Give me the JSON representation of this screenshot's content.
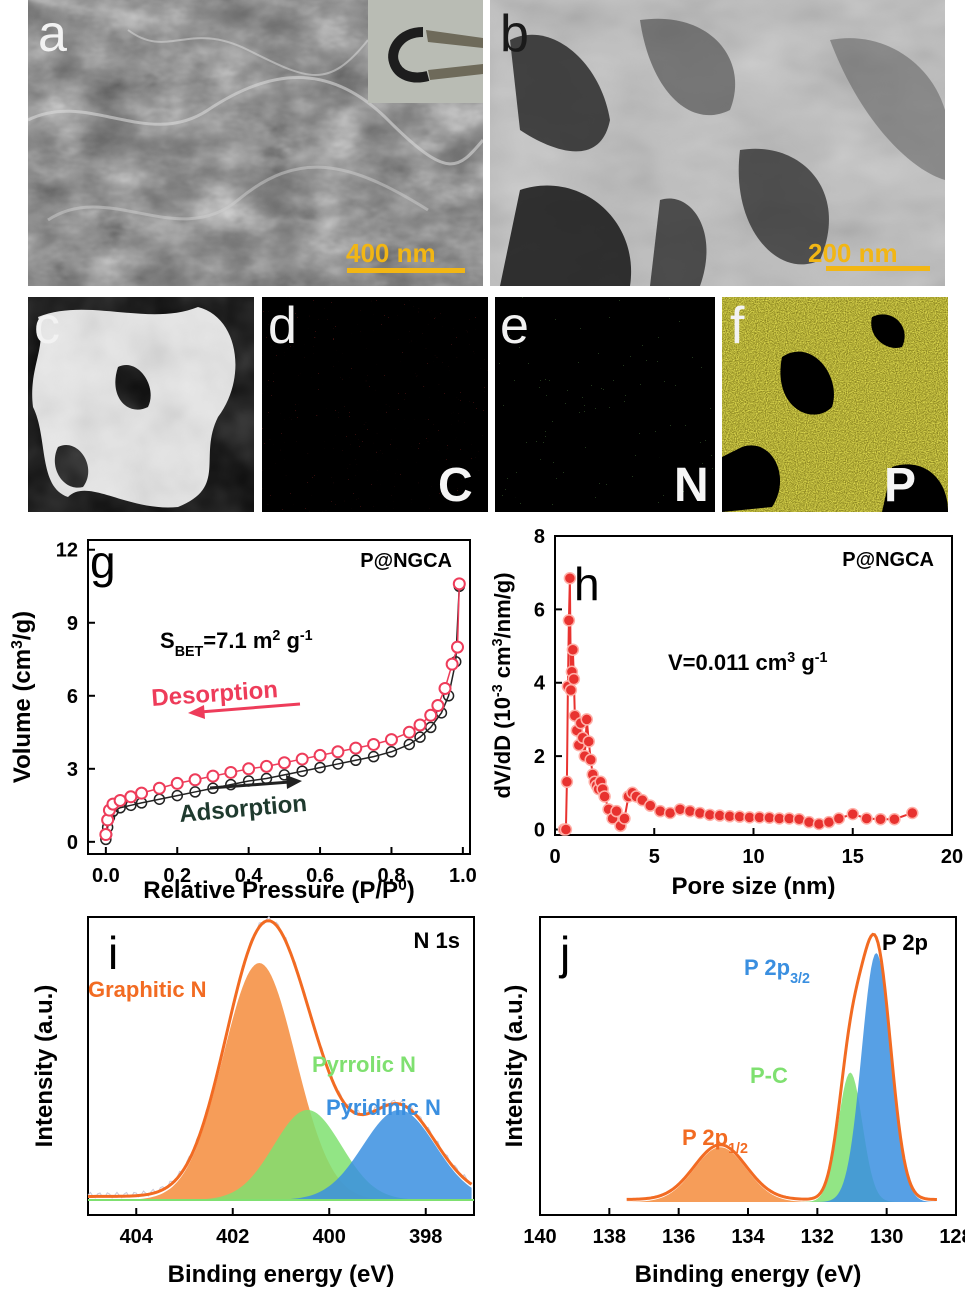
{
  "panels": {
    "a": {
      "label": "a",
      "scale": "400 nm"
    },
    "b": {
      "label": "b",
      "scale": "200 nm"
    },
    "c": {
      "label": "c"
    },
    "d": {
      "label": "d",
      "element": "C"
    },
    "e": {
      "label": "e",
      "element": "N"
    },
    "f": {
      "label": "f",
      "element": "P"
    }
  },
  "chart_data": [
    {
      "id": "g",
      "type": "scatter",
      "panel_label": "g",
      "sample": "P@NGCA",
      "annotation_main": "S",
      "annotation_sub": "BET",
      "annotation_rest": "=7.1 m",
      "annotation_sup": "2",
      "annotation_tail": " g",
      "annotation_sup2": "-1",
      "xlabel": "Relative Pressure (P/P",
      "xlabel_sup": "0",
      "xlabel_end": ")",
      "ylabel": "Volume (cm",
      "ylabel_sup": "3",
      "ylabel_end": "/g)",
      "xlim": [
        -0.05,
        1.02
      ],
      "ylim": [
        -0.5,
        12.4
      ],
      "xticks": [
        "0.0",
        "0.2",
        "0.4",
        "0.6",
        "0.8",
        "1.0"
      ],
      "xtick_values": [
        0.0,
        0.2,
        0.4,
        0.6,
        0.8,
        1.0
      ],
      "yticks": [
        "0",
        "3",
        "6",
        "9",
        "12"
      ],
      "ytick_values": [
        0,
        3,
        6,
        9,
        12
      ],
      "colors": {
        "desorption": "#ee3c5a",
        "adsorption": "#222222"
      },
      "series": [
        {
          "name": "Desorption",
          "x": [
            0.0,
            0.005,
            0.01,
            0.02,
            0.04,
            0.07,
            0.1,
            0.15,
            0.2,
            0.25,
            0.3,
            0.35,
            0.4,
            0.45,
            0.5,
            0.55,
            0.6,
            0.65,
            0.7,
            0.75,
            0.8,
            0.85,
            0.88,
            0.91,
            0.93,
            0.95,
            0.97,
            0.985,
            0.99
          ],
          "y": [
            0.3,
            0.9,
            1.3,
            1.55,
            1.7,
            1.85,
            2.0,
            2.2,
            2.4,
            2.55,
            2.7,
            2.85,
            3.0,
            3.1,
            3.25,
            3.4,
            3.55,
            3.7,
            3.85,
            4.0,
            4.2,
            4.5,
            4.8,
            5.2,
            5.6,
            6.3,
            7.3,
            8.0,
            10.6
          ]
        },
        {
          "name": "Adsorption",
          "x": [
            0.0,
            0.002,
            0.005,
            0.01,
            0.02,
            0.04,
            0.07,
            0.1,
            0.15,
            0.2,
            0.25,
            0.3,
            0.35,
            0.4,
            0.45,
            0.5,
            0.55,
            0.6,
            0.65,
            0.7,
            0.75,
            0.8,
            0.85,
            0.88,
            0.91,
            0.94,
            0.96,
            0.98,
            0.99
          ],
          "y": [
            0.1,
            0.3,
            0.6,
            1.0,
            1.25,
            1.4,
            1.5,
            1.6,
            1.75,
            1.9,
            2.05,
            2.2,
            2.35,
            2.5,
            2.6,
            2.75,
            2.9,
            3.05,
            3.2,
            3.35,
            3.5,
            3.7,
            4.0,
            4.3,
            4.7,
            5.3,
            6.0,
            7.4,
            10.5
          ]
        }
      ],
      "arrow_labels": {
        "desorption": "Desorption",
        "adsorption": "Adsorption"
      }
    },
    {
      "id": "h",
      "type": "line",
      "panel_label": "h",
      "sample": "P@NGCA",
      "annotation_main": "V=0.011 cm",
      "annotation_sup": "3",
      "annotation_tail": " g",
      "annotation_sup2": "-1",
      "xlabel": "Pore size (nm)",
      "ylabel": "dV/dD (10",
      "ylabel_sup": "-3",
      "ylabel_mid": " cm",
      "ylabel_sup2": "3",
      "ylabel_end": "/nm/g)",
      "xlim": [
        0,
        20
      ],
      "ylim": [
        -0.15,
        8
      ],
      "xticks": [
        "0",
        "5",
        "10",
        "15",
        "20"
      ],
      "xtick_values": [
        0,
        5,
        10,
        15,
        20
      ],
      "yticks": [
        "0",
        "2",
        "4",
        "6",
        "8"
      ],
      "ytick_values": [
        0,
        2,
        4,
        6,
        8
      ],
      "colors": {
        "series": "#e8322f"
      },
      "series": [
        {
          "name": "",
          "x": [
            0.45,
            0.55,
            0.6,
            0.65,
            0.7,
            0.75,
            0.8,
            0.85,
            0.9,
            0.95,
            1.0,
            1.1,
            1.2,
            1.3,
            1.4,
            1.5,
            1.6,
            1.7,
            1.8,
            1.9,
            2.0,
            2.1,
            2.2,
            2.3,
            2.4,
            2.5,
            2.7,
            2.9,
            3.1,
            3.3,
            3.5,
            3.7,
            3.9,
            4.1,
            4.4,
            4.8,
            5.3,
            5.8,
            6.3,
            6.8,
            7.3,
            7.8,
            8.3,
            8.8,
            9.3,
            9.8,
            10.3,
            10.8,
            11.3,
            11.8,
            12.3,
            12.8,
            13.3,
            13.8,
            14.3,
            15.0,
            15.7,
            16.4,
            17.1,
            18.0
          ],
          "y": [
            0.0,
            0.0,
            1.3,
            3.9,
            5.7,
            6.85,
            3.8,
            4.3,
            4.9,
            4.1,
            3.1,
            2.7,
            2.3,
            2.9,
            2.5,
            2.0,
            3.0,
            2.4,
            1.9,
            1.5,
            1.3,
            1.2,
            1.1,
            1.3,
            1.1,
            0.9,
            0.55,
            0.3,
            0.5,
            0.1,
            0.3,
            0.9,
            1.0,
            0.9,
            0.8,
            0.65,
            0.5,
            0.45,
            0.55,
            0.5,
            0.45,
            0.4,
            0.38,
            0.36,
            0.35,
            0.33,
            0.33,
            0.32,
            0.3,
            0.3,
            0.28,
            0.2,
            0.15,
            0.2,
            0.3,
            0.42,
            0.3,
            0.28,
            0.28,
            0.45
          ]
        }
      ]
    },
    {
      "id": "i",
      "type": "area",
      "panel_label": "i",
      "title": "N 1s",
      "xlabel": "Binding energy (eV)",
      "ylabel": "Intensity (a.u.)",
      "xlim": [
        405,
        397
      ],
      "xticks": [
        "404",
        "402",
        "400",
        "398"
      ],
      "xtick_values": [
        404,
        402,
        400,
        398
      ],
      "colors": {
        "envelope": "#f26b22",
        "graphitic": "#f48c3c",
        "pyrrolic": "#7fe070",
        "pyridinic": "#3a8fe0"
      },
      "series": [
        {
          "name": "Graphitic N",
          "center": 401.45,
          "height": 1.0,
          "sigma": 0.75
        },
        {
          "name": "Pyrrolic N",
          "center": 400.45,
          "height": 0.38,
          "sigma": 0.7
        },
        {
          "name": "Pyridinic N",
          "center": 398.55,
          "height": 0.38,
          "sigma": 0.75
        }
      ]
    },
    {
      "id": "j",
      "type": "area",
      "panel_label": "j",
      "title": "P 2p",
      "xlabel": "Binding energy (eV)",
      "ylabel": "Intensity (a.u.)",
      "xlim": [
        140,
        128
      ],
      "xticks": [
        "140",
        "138",
        "136",
        "134",
        "132",
        "130",
        "128"
      ],
      "xtick_values": [
        140,
        138,
        136,
        134,
        132,
        130,
        128
      ],
      "colors": {
        "envelope": "#f26b22",
        "p12": "#f48c3c",
        "pc": "#7fe070",
        "p32": "#3a8fe0"
      },
      "series": [
        {
          "name": "P 2p",
          "sub": "1/2",
          "center": 134.8,
          "height": 0.22,
          "sigma": 0.75
        },
        {
          "name": "P-C",
          "center": 131.05,
          "height": 0.52,
          "sigma": 0.35
        },
        {
          "name": "P 2p",
          "sub": "3/2",
          "center": 130.3,
          "height": 1.0,
          "sigma": 0.42
        }
      ]
    }
  ]
}
